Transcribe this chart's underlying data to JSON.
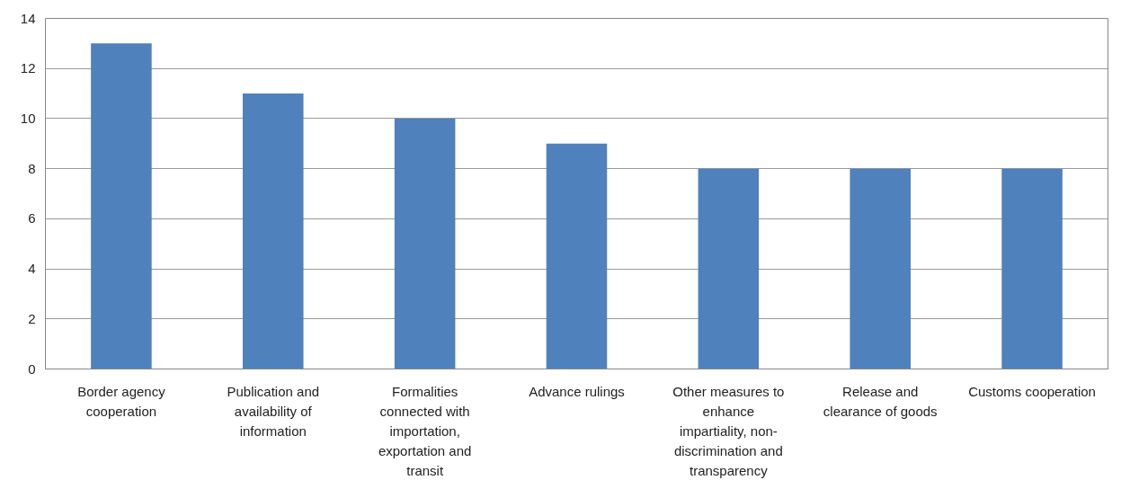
{
  "chart_data": {
    "type": "bar",
    "categories": [
      "Border agency cooperation",
      "Publication and availability of information",
      "Formalities connected with importation, exportation and transit",
      "Advance rulings",
      "Other measures to enhance impartiality, non-discrimination and transparency",
      "Release and clearance of goods",
      "Customs cooperation"
    ],
    "values": [
      13,
      11,
      10,
      9,
      8,
      8,
      8
    ],
    "color": "#4f81bd",
    "ylim": [
      0,
      14
    ],
    "yticks": [
      0,
      2,
      4,
      6,
      8,
      10,
      12,
      14
    ],
    "grid": "y"
  }
}
